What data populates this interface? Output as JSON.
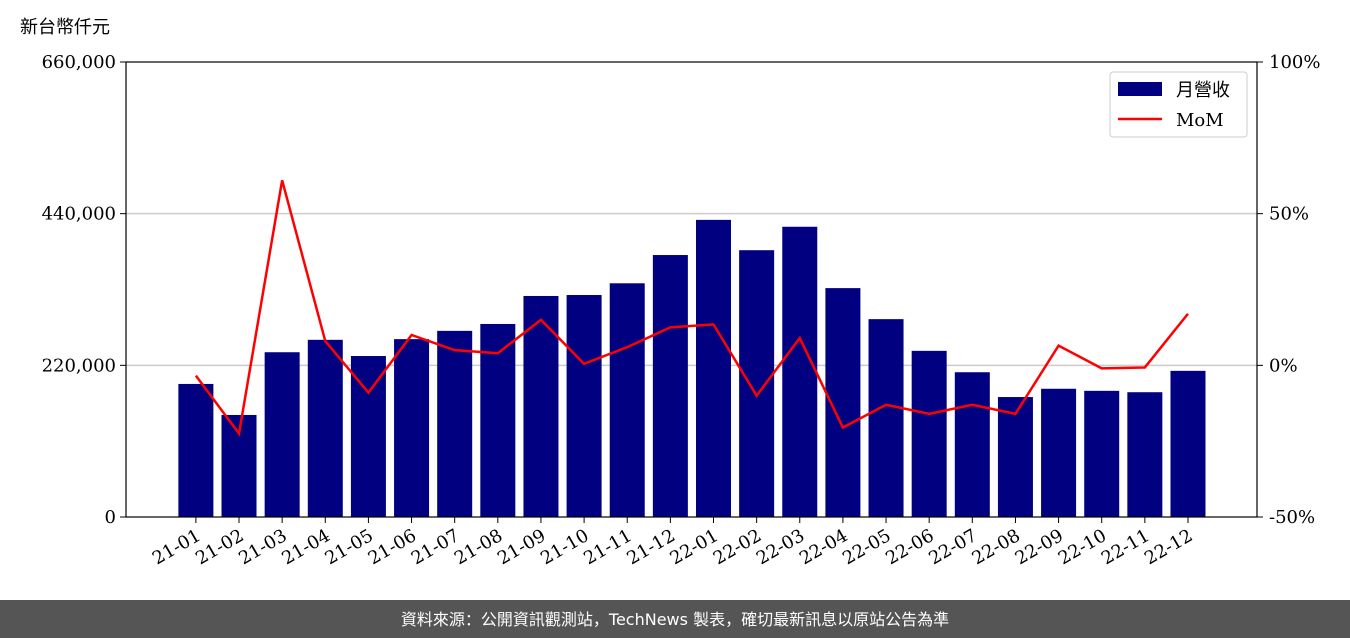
{
  "chart_data": {
    "type": "bar_line",
    "y_axis_label": "新台幣仟元",
    "footer": "資料來源：公開資訊觀測站，TechNews 製表，確切最新訊息以原站公告為準",
    "categories": [
      "21-01",
      "21-02",
      "21-03",
      "21-04",
      "21-05",
      "21-06",
      "21-07",
      "21-08",
      "21-09",
      "21-10",
      "21-11",
      "21-12",
      "22-01",
      "22-02",
      "22-03",
      "22-04",
      "22-05",
      "22-06",
      "22-07",
      "22-08",
      "22-09",
      "22-10",
      "22-11",
      "22-12"
    ],
    "series": [
      {
        "name": "月營收",
        "type": "bar",
        "color": "#000080",
        "values": [
          193000,
          148000,
          239000,
          257000,
          233500,
          258000,
          270000,
          280000,
          320600,
          322000,
          339000,
          380000,
          431000,
          387000,
          421000,
          332000,
          287000,
          241000,
          210000,
          174000,
          186000,
          183000,
          181000,
          212000
        ]
      },
      {
        "name": "MoM",
        "type": "line",
        "axis": "y2",
        "color": "#ff0000",
        "values": [
          -3.4,
          -22.5,
          61,
          8,
          -9,
          10,
          5,
          4,
          15,
          0.5,
          6,
          12.5,
          13.5,
          -10,
          9,
          -20.5,
          -13,
          -16,
          -13,
          -16,
          6.5,
          -1,
          -0.7,
          17
        ]
      }
    ],
    "ylim": [
      0,
      660000
    ],
    "yticks": [
      0,
      {
        "value": 220000,
        "label": "220,000"
      },
      {
        "value": 440000,
        "label": "440,000"
      },
      {
        "value": 660000,
        "label": "660,000"
      }
    ],
    "y2lim": [
      -50,
      100
    ],
    "y2ticks": [
      {
        "value": -50,
        "label": "-50%"
      },
      {
        "value": 0,
        "label": "0%"
      },
      {
        "value": 50,
        "label": "50%"
      },
      {
        "value": 100,
        "label": "100%"
      }
    ],
    "grid": true,
    "legend": "upper right"
  }
}
